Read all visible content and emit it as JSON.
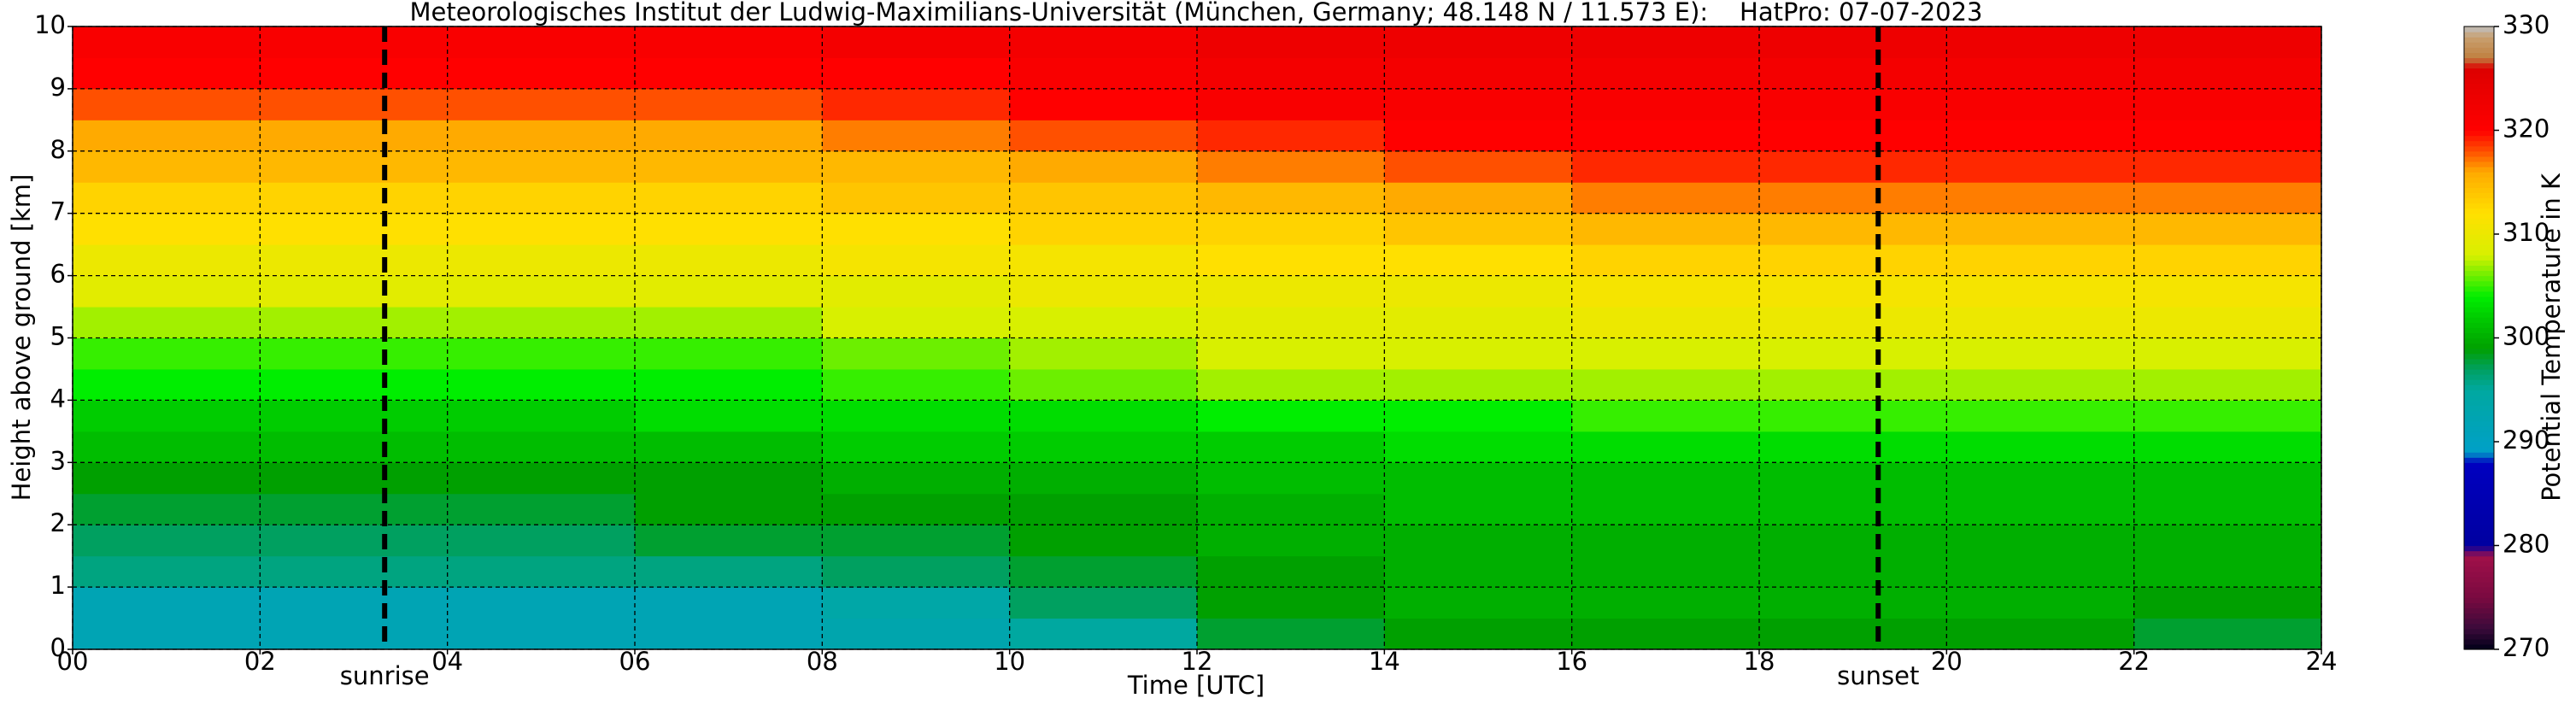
{
  "chart_data": {
    "type": "heatmap",
    "title": "Meteorologisches Institut der Ludwig-Maximilians-Universität (München, Germany; 48.148 N / 11.573 E):    HatPro: 07-07-2023",
    "x_label": "Time [UTC]",
    "y_label": "Height above ground [km]",
    "colorbar_label": "Potential Temperature in K",
    "xlim": [
      0,
      24
    ],
    "ylim": [
      0,
      10
    ],
    "xticks": [
      {
        "value": 0,
        "label": "00"
      },
      {
        "value": 2,
        "label": "02"
      },
      {
        "value": 4,
        "label": "04"
      },
      {
        "value": 6,
        "label": "06"
      },
      {
        "value": 8,
        "label": "08"
      },
      10,
      12,
      14,
      16,
      18,
      20,
      22,
      24
    ],
    "yticks": [
      0,
      1,
      2,
      3,
      4,
      5,
      6,
      7,
      8,
      9,
      10
    ],
    "grid": true,
    "clim": [
      270,
      330
    ],
    "cticks": [
      270,
      280,
      290,
      300,
      310,
      320,
      330
    ],
    "colorscale": [
      [
        270,
        "#000018"
      ],
      [
        272,
        "#3a0a3a"
      ],
      [
        275,
        "#7a0a40"
      ],
      [
        279,
        "#a0104a"
      ],
      [
        280,
        "#0000a0"
      ],
      [
        288,
        "#0000c0"
      ],
      [
        289,
        "#00a0c8"
      ],
      [
        295,
        "#00a8a0"
      ],
      [
        297,
        "#00a060"
      ],
      [
        299,
        "#00a000"
      ],
      [
        302,
        "#00cc00"
      ],
      [
        304,
        "#00ee00"
      ],
      [
        308,
        "#d8f000"
      ],
      [
        312,
        "#ffe000"
      ],
      [
        316,
        "#ffaa00"
      ],
      [
        318,
        "#ff5000"
      ],
      [
        320,
        "#ff0000"
      ],
      [
        326,
        "#dd0000"
      ],
      [
        327,
        "#c08040"
      ],
      [
        329,
        "#c8a070"
      ],
      [
        330,
        "#c0c0c0"
      ]
    ],
    "annotations": [
      {
        "x": 3.33,
        "label": "sunrise"
      },
      {
        "x": 19.27,
        "label": "sunset"
      }
    ],
    "x_edges": [
      0,
      2,
      4,
      6,
      8,
      10,
      12,
      14,
      16,
      18,
      20,
      22,
      24
    ],
    "y_edges": [
      0,
      0.5,
      1,
      1.5,
      2,
      2.5,
      3,
      3.5,
      4,
      4.5,
      5,
      5.5,
      6,
      6.5,
      7,
      7.5,
      8,
      8.5,
      9,
      9.5,
      10
    ],
    "z": [
      [
        292,
        292,
        292,
        292,
        293,
        295,
        298,
        299,
        299,
        299,
        299,
        298
      ],
      [
        292,
        292,
        292,
        292,
        294,
        297,
        299,
        300,
        300,
        300,
        300,
        299
      ],
      [
        296,
        296,
        296,
        296,
        297,
        298,
        299,
        300,
        300,
        300,
        300,
        300
      ],
      [
        297,
        297,
        297,
        298,
        298,
        299,
        300,
        300,
        300,
        300,
        300,
        300
      ],
      [
        298,
        298,
        298,
        299,
        299,
        299,
        300,
        301,
        301,
        301,
        301,
        301
      ],
      [
        299,
        299,
        299,
        299,
        300,
        300,
        301,
        301,
        301,
        301,
        301,
        301
      ],
      [
        301,
        301,
        301,
        301,
        302,
        302,
        302,
        303,
        303,
        303,
        303,
        303
      ],
      [
        302,
        302,
        302,
        303,
        303,
        303,
        304,
        304,
        305,
        305,
        305,
        305
      ],
      [
        304,
        304,
        304,
        304,
        305,
        306,
        307,
        307,
        307,
        307,
        307,
        307
      ],
      [
        305,
        305,
        305,
        305,
        306,
        307,
        308,
        308,
        308,
        308,
        308,
        308
      ],
      [
        307,
        307,
        307,
        307,
        308,
        308,
        309,
        309,
        310,
        310,
        310,
        310
      ],
      [
        309,
        309,
        309,
        309,
        309,
        310,
        310,
        310,
        311,
        311,
        311,
        311
      ],
      [
        310,
        310,
        310,
        310,
        311,
        311,
        312,
        312,
        313,
        313,
        313,
        313
      ],
      [
        312,
        312,
        312,
        312,
        312,
        313,
        313,
        314,
        315,
        315,
        315,
        315
      ],
      [
        313,
        313,
        313,
        313,
        314,
        314,
        315,
        316,
        317,
        317,
        317,
        317
      ],
      [
        315,
        315,
        315,
        315,
        315,
        316,
        317,
        318,
        319,
        319,
        319,
        319
      ],
      [
        316,
        316,
        316,
        316,
        317,
        318,
        319,
        320,
        320,
        320,
        320,
        320
      ],
      [
        318,
        318,
        318,
        318,
        319,
        320,
        321,
        321,
        321,
        321,
        321,
        321
      ],
      [
        320,
        320,
        320,
        320,
        320,
        321,
        322,
        322,
        322,
        322,
        322,
        322
      ],
      [
        321,
        321,
        321,
        321,
        322,
        322,
        323,
        323,
        323,
        323,
        323,
        323
      ]
    ]
  }
}
